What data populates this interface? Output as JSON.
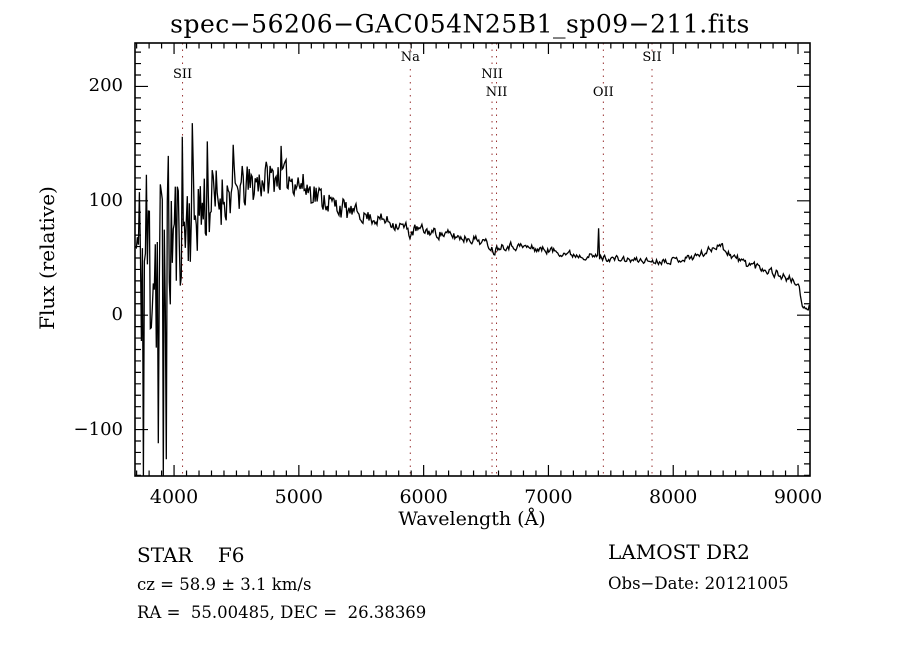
{
  "chart_data": {
    "type": "line",
    "title": "spec−56206−GAC054N25B1_sp09−211.fits",
    "xlabel": "Wavelength (Å)",
    "ylabel": "Flux (relative)",
    "xlim": [
      3687,
      9096
    ],
    "ylim": [
      -140.6,
      238
    ],
    "x_major_ticks": [
      4000,
      5000,
      6000,
      7000,
      8000,
      9000
    ],
    "x_minor_step": 100,
    "y_major_ticks": [
      -100,
      0,
      100,
      200
    ],
    "y_minor_step": 10,
    "grid": false,
    "line_color": "#000000",
    "marker_line_color": "#993333",
    "line_markers": [
      {
        "label": "SII",
        "wavelength": 4068,
        "row": 1
      },
      {
        "label": "Na",
        "wavelength": 5893,
        "row": 0
      },
      {
        "label": "NII",
        "wavelength": 6548,
        "row": 1
      },
      {
        "label": "NII",
        "wavelength": 6584,
        "row": 2
      },
      {
        "label": "OII",
        "wavelength": 7440,
        "row": 2
      },
      {
        "label": "SII",
        "wavelength": 7830,
        "row": 0
      }
    ],
    "spectrum": {
      "description": "Noisy stellar spectrum: mean flux anchors, noise half-amplitude anchors, and discrete spike overrides [wavelength, flux]",
      "sample_step": 8,
      "noise_seed": 11,
      "mean": [
        [
          3690,
          58
        ],
        [
          3715,
          46
        ],
        [
          3740,
          52
        ],
        [
          3765,
          57
        ],
        [
          3790,
          60
        ],
        [
          3815,
          52
        ],
        [
          3845,
          46
        ],
        [
          3880,
          44
        ],
        [
          3915,
          50
        ],
        [
          3945,
          58
        ],
        [
          3975,
          64
        ],
        [
          4000,
          70
        ],
        [
          4040,
          74
        ],
        [
          4080,
          79
        ],
        [
          4120,
          85
        ],
        [
          4160,
          89
        ],
        [
          4200,
          93
        ],
        [
          4260,
          96
        ],
        [
          4320,
          100
        ],
        [
          4390,
          104
        ],
        [
          4460,
          107
        ],
        [
          4540,
          110
        ],
        [
          4620,
          114
        ],
        [
          4700,
          118
        ],
        [
          4780,
          121
        ],
        [
          4860,
          123
        ],
        [
          4930,
          120
        ],
        [
          5000,
          115
        ],
        [
          5080,
          110
        ],
        [
          5160,
          104
        ],
        [
          5240,
          99
        ],
        [
          5320,
          95
        ],
        [
          5400,
          91
        ],
        [
          5480,
          89
        ],
        [
          5560,
          86
        ],
        [
          5640,
          84
        ],
        [
          5720,
          82
        ],
        [
          5800,
          79
        ],
        [
          5860,
          76
        ],
        [
          5893,
          71
        ],
        [
          5935,
          75
        ],
        [
          6000,
          74
        ],
        [
          6100,
          72
        ],
        [
          6200,
          70
        ],
        [
          6300,
          68
        ],
        [
          6400,
          67
        ],
        [
          6480,
          64
        ],
        [
          6530,
          61
        ],
        [
          6563,
          56
        ],
        [
          6610,
          61
        ],
        [
          6700,
          61
        ],
        [
          6800,
          60
        ],
        [
          6900,
          58
        ],
        [
          7000,
          57
        ],
        [
          7100,
          55
        ],
        [
          7200,
          53
        ],
        [
          7300,
          52
        ],
        [
          7390,
          51
        ],
        [
          7460,
          50
        ],
        [
          7560,
          49
        ],
        [
          7660,
          48
        ],
        [
          7760,
          48
        ],
        [
          7860,
          47
        ],
        [
          7960,
          48
        ],
        [
          8060,
          49
        ],
        [
          8160,
          51
        ],
        [
          8260,
          55
        ],
        [
          8320,
          59
        ],
        [
          8360,
          63
        ],
        [
          8400,
          59
        ],
        [
          8460,
          53
        ],
        [
          8530,
          48
        ],
        [
          8600,
          45
        ],
        [
          8700,
          42
        ],
        [
          8800,
          38
        ],
        [
          8900,
          33
        ],
        [
          8960,
          30
        ],
        [
          9000,
          27
        ],
        [
          9015,
          20
        ],
        [
          9035,
          6
        ],
        [
          9070,
          4
        ],
        [
          9096,
          9
        ]
      ],
      "noise": [
        [
          3690,
          80
        ],
        [
          3760,
          92
        ],
        [
          3830,
          98
        ],
        [
          3900,
          100
        ],
        [
          3950,
          85
        ],
        [
          4000,
          62
        ],
        [
          4060,
          50
        ],
        [
          4120,
          44
        ],
        [
          4200,
          38
        ],
        [
          4300,
          32
        ],
        [
          4450,
          26
        ],
        [
          4600,
          21
        ],
        [
          4800,
          17
        ],
        [
          5000,
          14
        ],
        [
          5200,
          12
        ],
        [
          5400,
          10
        ],
        [
          5600,
          9
        ],
        [
          5800,
          8
        ],
        [
          6000,
          7
        ],
        [
          6200,
          6.5
        ],
        [
          6500,
          5.5
        ],
        [
          6800,
          5
        ],
        [
          7200,
          4.5
        ],
        [
          7600,
          4
        ],
        [
          8000,
          4
        ],
        [
          8300,
          5
        ],
        [
          8600,
          6
        ],
        [
          8900,
          5.5
        ],
        [
          9000,
          4
        ],
        [
          9096,
          3
        ]
      ],
      "spikes": [
        [
          3755,
          -141
        ],
        [
          3875,
          -112
        ],
        [
          3912,
          -141
        ],
        [
          3940,
          -126
        ],
        [
          4062,
          156
        ],
        [
          4144,
          168
        ],
        [
          4265,
          152
        ],
        [
          4470,
          149
        ],
        [
          4860,
          148
        ],
        [
          7400,
          76
        ]
      ]
    }
  },
  "footer": {
    "classification": "STAR    F6",
    "cz": "cz = 58.9 ± 3.1 km/s",
    "radec": "RA =  55.00485, DEC =  26.38369",
    "survey": "LAMOST DR2",
    "obs_date": "Obs−Date: 20121005"
  }
}
